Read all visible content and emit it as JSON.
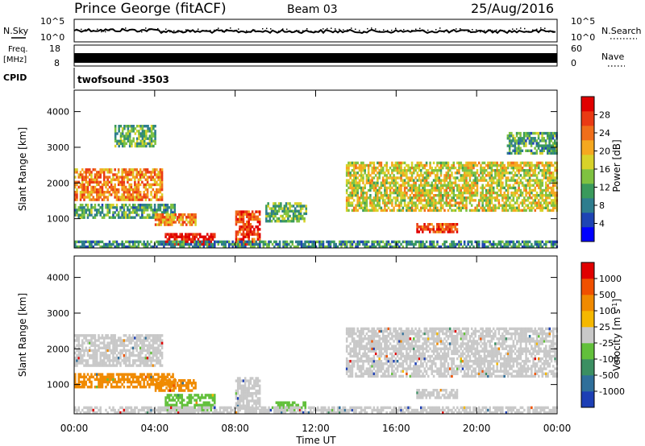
{
  "header": {
    "station": "Prince George (fitACF)",
    "beam": "Beam 03",
    "date": "25/Aug/2016"
  },
  "noise_panel": {
    "left_label": "N.Sky",
    "left_ticks": [
      "10^5",
      "10^0"
    ],
    "right_label": "N.Search",
    "right_ticks": [
      "10^5",
      "10^0"
    ]
  },
  "freq_panel": {
    "left_label_1": "Freq.",
    "left_label_2": "[MHz]",
    "left_ticks": [
      "18",
      "8"
    ],
    "right_label": "Nave",
    "right_ticks": [
      "60",
      "0"
    ]
  },
  "cpid": {
    "label": "CPID",
    "value": "twofsound -3503"
  },
  "chart_data": [
    {
      "type": "heatmap",
      "panel": "power",
      "ylabel": "Slant Range [km]",
      "xlabel": "Time UT",
      "ylim": [
        180,
        4600
      ],
      "xlim": [
        0,
        24
      ],
      "yticks": [
        "1000",
        "2000",
        "3000",
        "4000"
      ],
      "colorbar": {
        "label": "Power [dB]",
        "ticks": [
          "28",
          "24",
          "20",
          "16",
          "12",
          "8",
          "4"
        ],
        "colors": [
          "#0000ff",
          "#1e44b4",
          "#2e7d8e",
          "#3a9a5c",
          "#7fc241",
          "#d8d22a",
          "#f5a820",
          "#f06e1a",
          "#ea3a14",
          "#e00000"
        ]
      },
      "regions": [
        {
          "t": [
            0.0,
            4.4
          ],
          "r": [
            1500,
            2400
          ],
          "level": 0.72
        },
        {
          "t": [
            0.0,
            5.0
          ],
          "r": [
            1000,
            1400
          ],
          "level": 0.35
        },
        {
          "t": [
            2.0,
            4.0
          ],
          "r": [
            3000,
            3600
          ],
          "level": 0.4
        },
        {
          "t": [
            4.5,
            7.0
          ],
          "r": [
            250,
            600
          ],
          "level": 0.95
        },
        {
          "t": [
            4.0,
            6.0
          ],
          "r": [
            800,
            1100
          ],
          "level": 0.7
        },
        {
          "t": [
            8.0,
            9.2
          ],
          "r": [
            250,
            1200
          ],
          "level": 0.85
        },
        {
          "t": [
            9.5,
            11.5
          ],
          "r": [
            900,
            1400
          ],
          "level": 0.4
        },
        {
          "t": [
            13.5,
            24.0
          ],
          "r": [
            1200,
            2600
          ],
          "level": 0.55
        },
        {
          "t": [
            17.0,
            19.0
          ],
          "r": [
            600,
            850
          ],
          "level": 0.82
        },
        {
          "t": [
            21.5,
            24.0
          ],
          "r": [
            2800,
            3400
          ],
          "level": 0.35
        },
        {
          "t": [
            0.0,
            24.0
          ],
          "r": [
            180,
            350
          ],
          "level": 0.3
        }
      ]
    },
    {
      "type": "heatmap",
      "panel": "velocity",
      "ylabel": "Slant Range [km]",
      "xlabel": "Time UT",
      "ylim": [
        180,
        4600
      ],
      "xlim": [
        0,
        24
      ],
      "yticks": [
        "1000",
        "2000",
        "3000",
        "4000"
      ],
      "xticks": [
        "00:00",
        "04:00",
        "08:00",
        "12:00",
        "16:00",
        "20:00",
        "00:00"
      ],
      "colorbar": {
        "label": "Velocity [m s^-1]",
        "ticks": [
          "1000",
          "500",
          "100",
          "25",
          "-25",
          "-100",
          "-500",
          "-1000"
        ],
        "colors": [
          "#1d3fb5",
          "#2f6f9a",
          "#3b8f62",
          "#62c03b",
          "#c9c9c9",
          "#f5b800",
          "#f08a00",
          "#f05000",
          "#e00000"
        ]
      },
      "regions": [
        {
          "t": [
            0.0,
            4.4
          ],
          "r": [
            1500,
            2400
          ],
          "color": "#c9c9c9"
        },
        {
          "t": [
            0.0,
            5.0
          ],
          "r": [
            900,
            1300
          ],
          "color": "#f08a00"
        },
        {
          "t": [
            4.5,
            7.0
          ],
          "r": [
            250,
            700
          ],
          "color": "#62c03b"
        },
        {
          "t": [
            4.0,
            6.0
          ],
          "r": [
            800,
            1100
          ],
          "color": "#f08a00"
        },
        {
          "t": [
            8.0,
            9.2
          ],
          "r": [
            300,
            1200
          ],
          "color": "#c9c9c9"
        },
        {
          "t": [
            10.0,
            11.5
          ],
          "r": [
            250,
            500
          ],
          "color": "#62c03b"
        },
        {
          "t": [
            13.5,
            24.0
          ],
          "r": [
            1200,
            2600
          ],
          "color": "#c9c9c9"
        },
        {
          "t": [
            17.0,
            19.0
          ],
          "r": [
            600,
            850
          ],
          "color": "#c9c9c9"
        },
        {
          "t": [
            0.0,
            24.0
          ],
          "r": [
            180,
            350
          ],
          "color": "#c9c9c9"
        }
      ]
    }
  ]
}
